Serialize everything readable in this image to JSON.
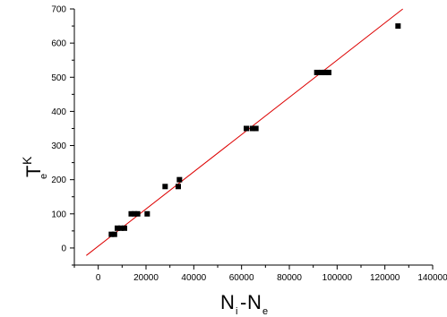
{
  "chart_data": {
    "type": "scatter",
    "xlim": [
      -10000,
      140000
    ],
    "ylim": [
      -50,
      700
    ],
    "x_ticks": [
      0,
      20000,
      40000,
      60000,
      80000,
      100000,
      120000,
      140000
    ],
    "x_tick_labels": [
      "0",
      "20000",
      "40000",
      "60000",
      "80000",
      "100000",
      "120000",
      "140000"
    ],
    "y_ticks": [
      0,
      100,
      200,
      300,
      400,
      500,
      600,
      700
    ],
    "y_tick_labels": [
      "0",
      "100",
      "200",
      "300",
      "400",
      "500",
      "600",
      "700"
    ],
    "xlabel": {
      "main": "N",
      "sub1": "i",
      "dash": "-",
      "main2": "N",
      "sub2": "e"
    },
    "ylabel": {
      "main": "T",
      "sup": "K",
      "sub": "e"
    },
    "grid": false,
    "colors": {
      "points": "#000000",
      "fit_line": "#dd0000",
      "axes": "#000000"
    },
    "series": [
      {
        "points": [
          {
            "x": 5500,
            "y": 40
          },
          {
            "x": 6800,
            "y": 40
          },
          {
            "x": 8000,
            "y": 58
          },
          {
            "x": 9500,
            "y": 58
          },
          {
            "x": 11000,
            "y": 58
          },
          {
            "x": 13800,
            "y": 100
          },
          {
            "x": 15200,
            "y": 100
          },
          {
            "x": 16500,
            "y": 100
          },
          {
            "x": 20500,
            "y": 100
          },
          {
            "x": 28000,
            "y": 180
          },
          {
            "x": 33500,
            "y": 180
          },
          {
            "x": 34000,
            "y": 200
          },
          {
            "x": 62000,
            "y": 350
          },
          {
            "x": 64500,
            "y": 350
          },
          {
            "x": 66000,
            "y": 350
          },
          {
            "x": 91500,
            "y": 514
          },
          {
            "x": 93500,
            "y": 514
          },
          {
            "x": 95000,
            "y": 514
          },
          {
            "x": 96500,
            "y": 514
          },
          {
            "x": 125500,
            "y": 650
          }
        ]
      }
    ],
    "fit_line": {
      "x": [
        -5000,
        127500
      ],
      "y": [
        -22,
        700
      ]
    }
  }
}
